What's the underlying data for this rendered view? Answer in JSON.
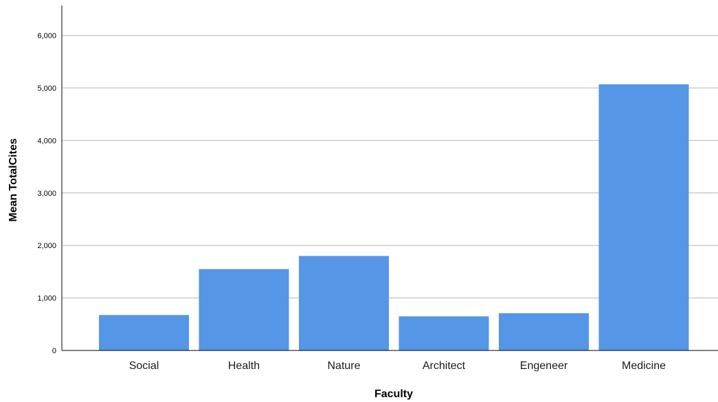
{
  "chart_data": {
    "type": "bar",
    "xlabel": "Faculty",
    "ylabel": "Mean TotalCites",
    "categories": [
      "Social",
      "Health",
      "Nature",
      "Architect",
      "Engeneer",
      "Medicine"
    ],
    "values": [
      675,
      1550,
      1800,
      650,
      710,
      5070
    ],
    "ylim": [
      0,
      6500
    ],
    "yticks": [
      0,
      1000,
      2000,
      3000,
      4000,
      5000,
      6000
    ],
    "ytick_labels": [
      "0",
      "1,000",
      "2,000",
      "3,000",
      "4,000",
      "5,000",
      "6,000"
    ],
    "grid": "horizontal",
    "legend": "none",
    "colors": {
      "bar": "#5596e6",
      "grid": "#b4b4b4",
      "axis": "#000000"
    }
  }
}
